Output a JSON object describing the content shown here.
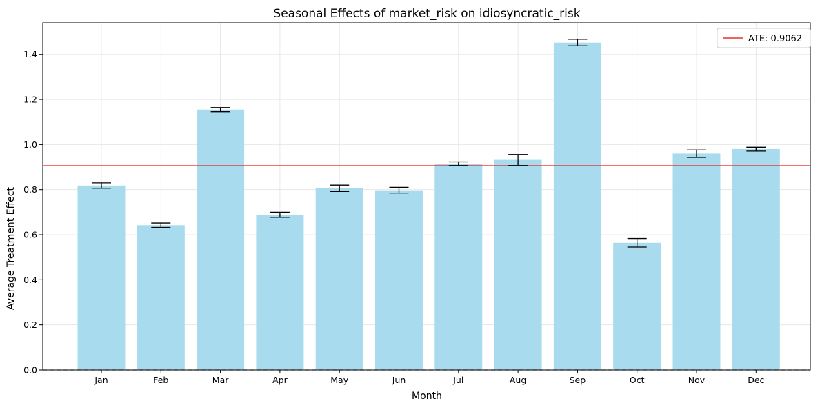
{
  "chart_data": {
    "type": "bar",
    "title": "Seasonal Effects of market_risk on idiosyncratic_risk",
    "xlabel": "Month",
    "ylabel": "Average Treatment Effect",
    "categories": [
      "Jan",
      "Feb",
      "Mar",
      "Apr",
      "May",
      "Jun",
      "Jul",
      "Aug",
      "Sep",
      "Oct",
      "Nov",
      "Dec"
    ],
    "values": [
      0.818,
      0.642,
      1.155,
      0.688,
      0.806,
      0.797,
      0.915,
      0.932,
      1.452,
      0.564,
      0.96,
      0.98
    ],
    "error_low": [
      0.806,
      0.632,
      1.146,
      0.677,
      0.792,
      0.785,
      0.907,
      0.907,
      1.438,
      0.545,
      0.943,
      0.971
    ],
    "error_high": [
      0.83,
      0.652,
      1.164,
      0.7,
      0.82,
      0.81,
      0.923,
      0.956,
      1.467,
      0.583,
      0.976,
      0.988
    ],
    "ylim": [
      0,
      1.54
    ],
    "yticks": [
      0.0,
      0.2,
      0.4,
      0.6,
      0.8,
      1.0,
      1.2,
      1.4
    ],
    "ytick_labels": [
      "0.0",
      "0.2",
      "0.4",
      "0.6",
      "0.8",
      "1.0",
      "1.2",
      "1.4"
    ],
    "reference_line": {
      "value": 0.9062,
      "label": "ATE: 0.9062",
      "color": "#e8302e"
    },
    "zero_line": {
      "value": 0,
      "style": "dashed"
    },
    "bar_color": "#a8dbed",
    "error_color": "#000000",
    "grid": true,
    "legend_position": "top-right"
  }
}
